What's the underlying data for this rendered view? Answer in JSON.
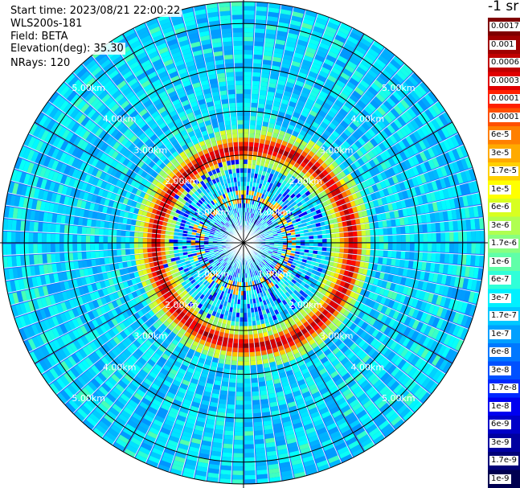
{
  "info": {
    "start_time": "Start time: 2023/08/21 22:00:22",
    "device": "WLS200s-181",
    "field": "Field: BETA",
    "elevation": "Elevation(deg): 35.30",
    "nrays": "NRays: 120"
  },
  "colorbar": {
    "unit": "-1 sr",
    "ticks": [
      "0.0017",
      "0.001",
      "0.0006",
      "0.0003",
      "0.00017",
      "0.0001",
      "6e-5",
      "3e-5",
      "1.7e-5",
      "1e-5",
      "6e-6",
      "3e-6",
      "1.7e-6",
      "1e-6",
      "6e-7",
      "3e-7",
      "1.7e-7",
      "1e-7",
      "6e-8",
      "3e-8",
      "1.7e-8",
      "1e-8",
      "6e-9",
      "3e-9",
      "1.7e-9",
      "1e-9"
    ],
    "colors": [
      "#7f0000",
      "#a00000",
      "#c00000",
      "#e00000",
      "#ff2000",
      "#ff5000",
      "#ff8000",
      "#ffaa00",
      "#ffd000",
      "#ffff00",
      "#d8ff20",
      "#b0ff50",
      "#88ff80",
      "#60ffa8",
      "#30ffd8",
      "#00f0ff",
      "#00c8ff",
      "#00a0ff",
      "#0078ff",
      "#0050ff",
      "#0028ff",
      "#0000f0",
      "#0000c8",
      "#0000a0",
      "#000078",
      "#000050"
    ]
  },
  "chart_data": {
    "type": "polar-ppi",
    "field": "BETA",
    "nrays": 120,
    "range_rings_km": [
      1,
      2,
      3,
      4,
      5
    ],
    "ring_labels": [
      "1.00km",
      "2.00km",
      "3.00km",
      "4.00km",
      "5.00km"
    ],
    "max_range_km": 5.5,
    "colorscale": "log10 jet, 1e-9 to 0.0017",
    "features": {
      "background_beta": "1e-7 to 1e-8",
      "aerosol_layer_ring_km": [
        1.8,
        2.6
      ],
      "aerosol_layer_beta": "3e-5 to 6e-5",
      "inner_ring_km": [
        0.8,
        1.2
      ]
    }
  }
}
